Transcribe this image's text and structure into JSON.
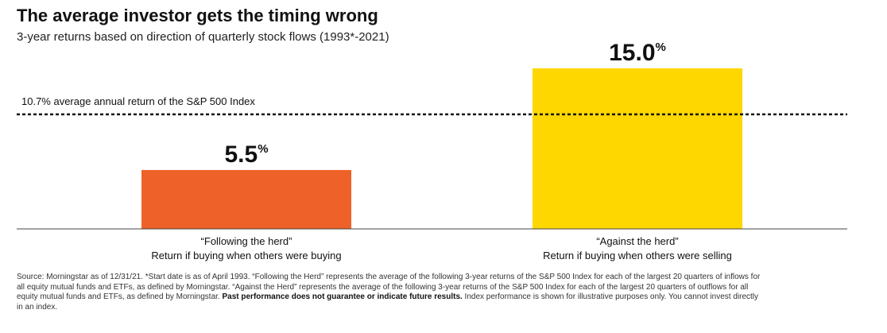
{
  "chart_data": {
    "type": "bar",
    "title": "The average investor gets the timing wrong",
    "subtitle": "3-year returns based on direction of quarterly stock flows (1993*-2021)",
    "categories": [
      "“Following the herd”",
      "“Against the herd”"
    ],
    "category_sublabels": [
      "Return if buying when others were buying",
      "Return if buying when others were selling"
    ],
    "values": [
      5.5,
      15.0
    ],
    "value_labels": [
      "5.5",
      "15.0"
    ],
    "value_suffix": "%",
    "ylim": [
      0,
      15.0
    ],
    "reference_line": {
      "value": 10.7,
      "label": "10.7% average annual return of the S&P 500 Index"
    },
    "colors": [
      "#ee6128",
      "#ffd700"
    ],
    "grid": false,
    "xlabel": "",
    "ylabel": ""
  },
  "footnote": {
    "text_before": "Source: Morningstar as of 12/31/21. *Start date is as of April 1993. “Following the Herd” represents the average of the following 3-year returns of the S&P 500 Index for each of the largest 20 quarters of inflows for all equity mutual funds and ETFs, as defined by Morningstar. “Against the Herd” represents the average of the following 3-year returns of the S&P 500 Index for each of the largest 20 quarters of outflows for all equity mutual funds and ETFs, as defined by Morningstar. ",
    "bold": "Past performance does not guarantee or indicate future results.",
    "text_after": " Index performance is shown for illustrative purposes only. You cannot invest directly in an index."
  }
}
